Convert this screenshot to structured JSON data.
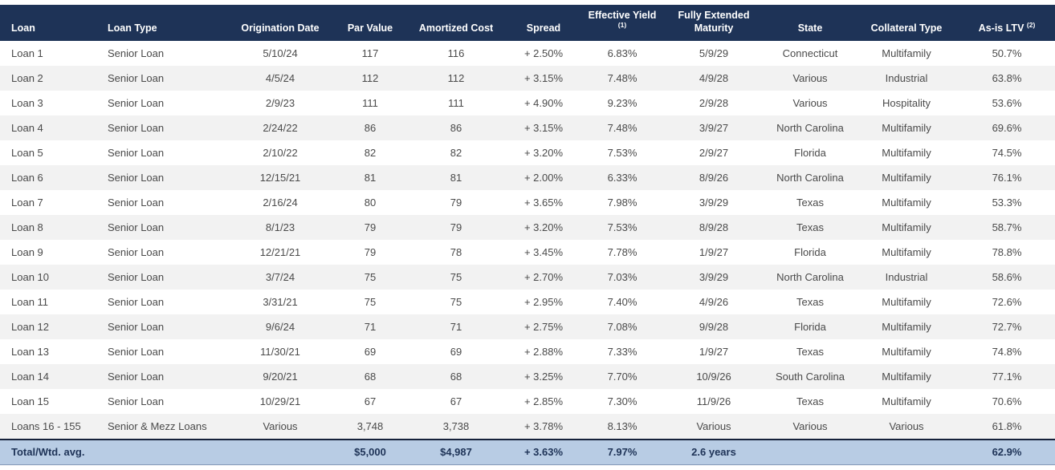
{
  "colors": {
    "header_bg": "#1e3357",
    "header_text": "#ffffff",
    "row_stripe": "#f2f2f2",
    "row_plain": "#ffffff",
    "body_text": "#4a4a4a",
    "total_bg": "#b8cce4",
    "total_text": "#1e3357",
    "total_top_border": "#16213a"
  },
  "table": {
    "columns": [
      {
        "id": "loan",
        "label": "Loan",
        "sup": "",
        "align": "left"
      },
      {
        "id": "loan-type",
        "label": "Loan Type",
        "sup": "",
        "align": "left"
      },
      {
        "id": "origination-date",
        "label": "Origination Date",
        "sup": "",
        "align": "center"
      },
      {
        "id": "par-value",
        "label": "Par Value",
        "sup": "",
        "align": "center"
      },
      {
        "id": "amortized-cost",
        "label": "Amortized Cost",
        "sup": "",
        "align": "center"
      },
      {
        "id": "spread",
        "label": "Spread",
        "sup": "",
        "align": "center"
      },
      {
        "id": "effective-yield",
        "label": "Effective Yield",
        "sup": "(1)",
        "align": "center"
      },
      {
        "id": "fully-extended-maturity",
        "label": "Fully Extended Maturity",
        "sup": "",
        "align": "center"
      },
      {
        "id": "state",
        "label": "State",
        "sup": "",
        "align": "center"
      },
      {
        "id": "collateral-type",
        "label": "Collateral Type",
        "sup": "",
        "align": "center"
      },
      {
        "id": "as-is-ltv",
        "label": "As-is LTV",
        "sup": "(2)",
        "align": "center"
      }
    ],
    "rows": [
      [
        "Loan 1",
        "Senior Loan",
        "5/10/24",
        "117",
        "116",
        "+ 2.50%",
        "6.83%",
        "5/9/29",
        "Connecticut",
        "Multifamily",
        "50.7%"
      ],
      [
        "Loan 2",
        "Senior Loan",
        "4/5/24",
        "112",
        "112",
        "+ 3.15%",
        "7.48%",
        "4/9/28",
        "Various",
        "Industrial",
        "63.8%"
      ],
      [
        "Loan 3",
        "Senior Loan",
        "2/9/23",
        "111",
        "111",
        "+ 4.90%",
        "9.23%",
        "2/9/28",
        "Various",
        "Hospitality",
        "53.6%"
      ],
      [
        "Loan 4",
        "Senior Loan",
        "2/24/22",
        "86",
        "86",
        "+ 3.15%",
        "7.48%",
        "3/9/27",
        "North Carolina",
        "Multifamily",
        "69.6%"
      ],
      [
        "Loan 5",
        "Senior Loan",
        "2/10/22",
        "82",
        "82",
        "+ 3.20%",
        "7.53%",
        "2/9/27",
        "Florida",
        "Multifamily",
        "74.5%"
      ],
      [
        "Loan 6",
        "Senior Loan",
        "12/15/21",
        "81",
        "81",
        "+ 2.00%",
        "6.33%",
        "8/9/26",
        "North Carolina",
        "Multifamily",
        "76.1%"
      ],
      [
        "Loan 7",
        "Senior Loan",
        "2/16/24",
        "80",
        "79",
        "+ 3.65%",
        "7.98%",
        "3/9/29",
        "Texas",
        "Multifamily",
        "53.3%"
      ],
      [
        "Loan 8",
        "Senior Loan",
        "8/1/23",
        "79",
        "79",
        "+ 3.20%",
        "7.53%",
        "8/9/28",
        "Texas",
        "Multifamily",
        "58.7%"
      ],
      [
        "Loan 9",
        "Senior Loan",
        "12/21/21",
        "79",
        "78",
        "+ 3.45%",
        "7.78%",
        "1/9/27",
        "Florida",
        "Multifamily",
        "78.8%"
      ],
      [
        "Loan 10",
        "Senior Loan",
        "3/7/24",
        "75",
        "75",
        "+ 2.70%",
        "7.03%",
        "3/9/29",
        "North Carolina",
        "Industrial",
        "58.6%"
      ],
      [
        "Loan 11",
        "Senior Loan",
        "3/31/21",
        "75",
        "75",
        "+ 2.95%",
        "7.40%",
        "4/9/26",
        "Texas",
        "Multifamily",
        "72.6%"
      ],
      [
        "Loan 12",
        "Senior Loan",
        "9/6/24",
        "71",
        "71",
        "+ 2.75%",
        "7.08%",
        "9/9/28",
        "Florida",
        "Multifamily",
        "72.7%"
      ],
      [
        "Loan 13",
        "Senior Loan",
        "11/30/21",
        "69",
        "69",
        "+ 2.88%",
        "7.33%",
        "1/9/27",
        "Texas",
        "Multifamily",
        "74.8%"
      ],
      [
        "Loan 14",
        "Senior Loan",
        "9/20/21",
        "68",
        "68",
        "+ 3.25%",
        "7.70%",
        "10/9/26",
        "South Carolina",
        "Multifamily",
        "77.1%"
      ],
      [
        "Loan 15",
        "Senior Loan",
        "10/29/21",
        "67",
        "67",
        "+ 2.85%",
        "7.30%",
        "11/9/26",
        "Texas",
        "Multifamily",
        "70.6%"
      ],
      [
        "Loans 16 - 155",
        "Senior & Mezz Loans",
        "Various",
        "3,748",
        "3,738",
        "+ 3.78%",
        "8.13%",
        "Various",
        "Various",
        "Various",
        "61.8%"
      ]
    ],
    "total_row": [
      "Total/Wtd. avg.",
      "",
      "",
      "$5,000",
      "$4,987",
      "+ 3.63%",
      "7.97%",
      "2.6 years",
      "",
      "",
      "62.9%"
    ]
  }
}
